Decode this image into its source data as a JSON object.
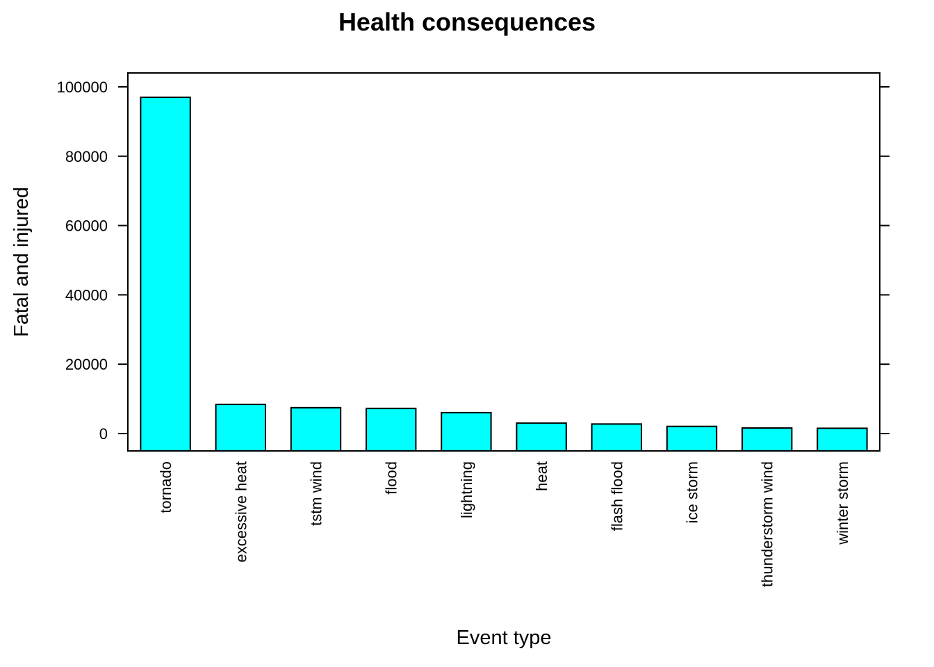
{
  "chart_data": {
    "type": "bar",
    "title": "Health consequences",
    "xlabel": "Event type",
    "ylabel": "Fatal and injured",
    "categories": [
      "tornado",
      "excessive heat",
      "tstm wind",
      "flood",
      "lightning",
      "heat",
      "flash flood",
      "ice storm",
      "thunderstorm wind",
      "winter storm"
    ],
    "values": [
      96979,
      8428,
      7461,
      7259,
      6046,
      3037,
      2755,
      2064,
      1621,
      1527
    ],
    "ylim": [
      -5000,
      104000
    ],
    "yticks": [
      0,
      20000,
      40000,
      60000,
      80000,
      100000
    ],
    "bar_color": "#00ffff",
    "grid": false
  }
}
